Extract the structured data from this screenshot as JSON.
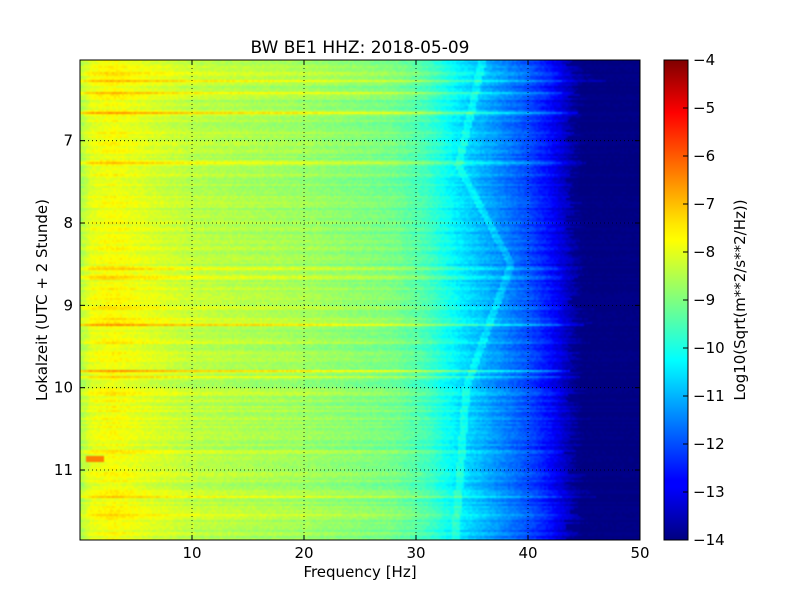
{
  "chart_data": {
    "type": "heatmap",
    "title": "BW BE1 HHZ: 2018-05-09",
    "xlabel": "Frequency [Hz]",
    "ylabel": "Lokalzeit (UTC + 2 Stunde)",
    "xlim": [
      0,
      50
    ],
    "ylim": [
      11.85,
      6.02
    ],
    "y_axis_inverted": true,
    "x_ticks": [
      10,
      20,
      30,
      40,
      50
    ],
    "x_tick_labels": [
      "10",
      "20",
      "30",
      "40",
      "50"
    ],
    "y_ticks": [
      7,
      8,
      9,
      10,
      11
    ],
    "y_tick_labels": [
      "7",
      "8",
      "9",
      "10",
      "11"
    ],
    "grid": true,
    "colormap": "jet",
    "colorbar": {
      "label": "Log10(Sqrt(m**2/s**2/Hz))",
      "range": [
        -14,
        -4
      ],
      "ticks": [
        -4,
        -5,
        -6,
        -7,
        -8,
        -9,
        -10,
        -11,
        -12,
        -13,
        -14
      ],
      "tick_labels": [
        "−4",
        "−5",
        "−6",
        "−7",
        "−8",
        "−9",
        "−10",
        "−11",
        "−12",
        "−13",
        "−14"
      ]
    },
    "spectral_profile": {
      "frequency_hz": [
        0,
        1,
        3,
        5,
        10,
        20,
        28,
        31,
        34,
        38,
        40,
        42,
        44,
        45,
        50
      ],
      "log_amplitude": [
        -8.6,
        -8.0,
        -7.8,
        -8.0,
        -8.4,
        -8.7,
        -9.1,
        -9.6,
        -10.5,
        -11.5,
        -12.0,
        -12.7,
        -13.6,
        -14.0,
        -14.0
      ]
    },
    "bright_bands": [
      {
        "hour": 6.18,
        "delta": 0.7,
        "cutoff_hz": 45
      },
      {
        "hour": 6.28,
        "delta": 0.9,
        "cutoff_hz": 46
      },
      {
        "hour": 6.42,
        "delta": 1.0,
        "cutoff_hz": 45
      },
      {
        "hour": 6.66,
        "delta": 1.0,
        "cutoff_hz": 45
      },
      {
        "hour": 7.27,
        "delta": 0.8,
        "cutoff_hz": 44
      },
      {
        "hour": 8.56,
        "delta": 0.9,
        "cutoff_hz": 45
      },
      {
        "hour": 8.66,
        "delta": 0.8,
        "cutoff_hz": 45
      },
      {
        "hour": 8.8,
        "delta": 0.6,
        "cutoff_hz": 44
      },
      {
        "hour": 9.03,
        "delta": 1.0,
        "cutoff_hz": 45
      },
      {
        "hour": 9.17,
        "delta": 0.5,
        "cutoff_hz": 45
      },
      {
        "hour": 9.24,
        "delta": 1.1,
        "cutoff_hz": 46
      },
      {
        "hour": 9.45,
        "delta": 0.6,
        "cutoff_hz": 43
      },
      {
        "hour": 9.8,
        "delta": 1.0,
        "cutoff_hz": 45
      },
      {
        "hour": 9.87,
        "delta": 0.6,
        "cutoff_hz": 45
      },
      {
        "hour": 10.08,
        "delta": 0.5,
        "cutoff_hz": 44
      },
      {
        "hour": 10.78,
        "delta": 0.6,
        "cutoff_hz": 44
      },
      {
        "hour": 11.32,
        "delta": 1.0,
        "cutoff_hz": 45
      },
      {
        "hour": 11.55,
        "delta": 0.6,
        "cutoff_hz": 43
      }
    ],
    "low_frequency_hotspot": {
      "hour": 10.87,
      "frequency_hz": [
        0.5,
        2.2
      ],
      "log_amplitude": -6.5
    },
    "drifting_line": {
      "hour": [
        6.0,
        7.3,
        8.5,
        10.0,
        11.85
      ],
      "frequency_hz": [
        36.0,
        33.8,
        38.5,
        34.5,
        33.5
      ]
    }
  }
}
